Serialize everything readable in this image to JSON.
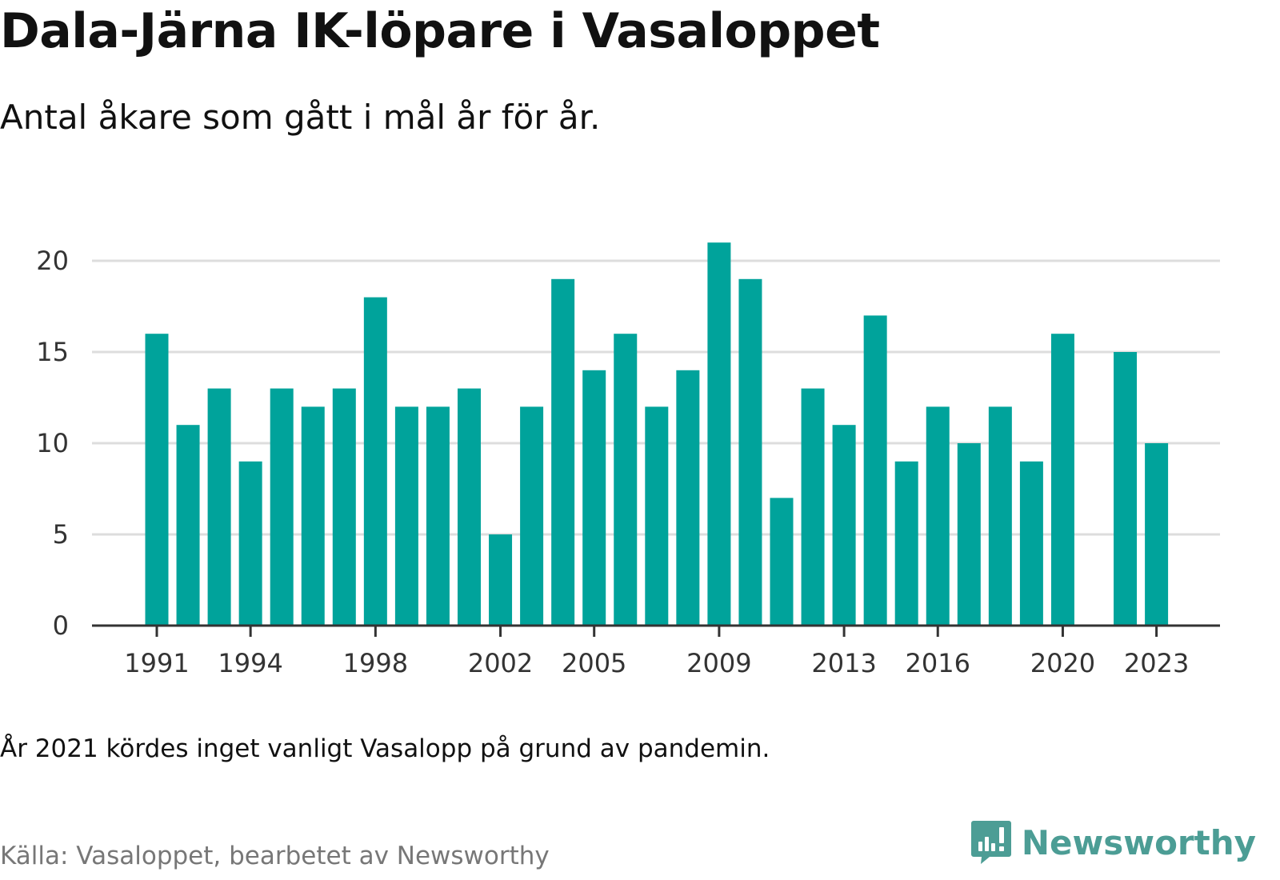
{
  "header": {
    "title": "Dala-Järna IK-löpare i Vasaloppet",
    "subtitle": "Antal åkare som gått i mål år för år."
  },
  "footer": {
    "note": "År 2021 kördes inget vanligt Vasalopp på grund av pandemin.",
    "source": "Källa: Vasaloppet, bearbetet av Newsworthy",
    "brand": "Newsworthy",
    "brand_icon": "bar-chart-speech-bubble-icon"
  },
  "colors": {
    "bar": "#00a39b",
    "grid": "#dddddd",
    "axis": "#333333",
    "brand": "#4c9d95"
  },
  "chart_data": {
    "type": "bar",
    "categories": [
      "1991",
      "1992",
      "1993",
      "1994",
      "1995",
      "1996",
      "1997",
      "1998",
      "1999",
      "2000",
      "2001",
      "2002",
      "2003",
      "2004",
      "2005",
      "2006",
      "2007",
      "2008",
      "2009",
      "2010",
      "2011",
      "2012",
      "2013",
      "2014",
      "2015",
      "2016",
      "2017",
      "2018",
      "2019",
      "2020",
      "2021",
      "2022",
      "2023"
    ],
    "values": [
      16,
      11,
      13,
      9,
      13,
      12,
      13,
      18,
      12,
      12,
      13,
      5,
      12,
      19,
      14,
      16,
      12,
      14,
      21,
      19,
      7,
      13,
      11,
      17,
      9,
      12,
      10,
      12,
      9,
      16,
      null,
      15,
      10
    ],
    "xtick_labels": [
      "1991",
      "1994",
      "1998",
      "2002",
      "2005",
      "2009",
      "2013",
      "2016",
      "2020",
      "2023"
    ],
    "yticks": [
      0,
      5,
      10,
      15,
      20
    ],
    "ylim": [
      0,
      21
    ],
    "grid": true,
    "xlabel": "",
    "ylabel": ""
  }
}
